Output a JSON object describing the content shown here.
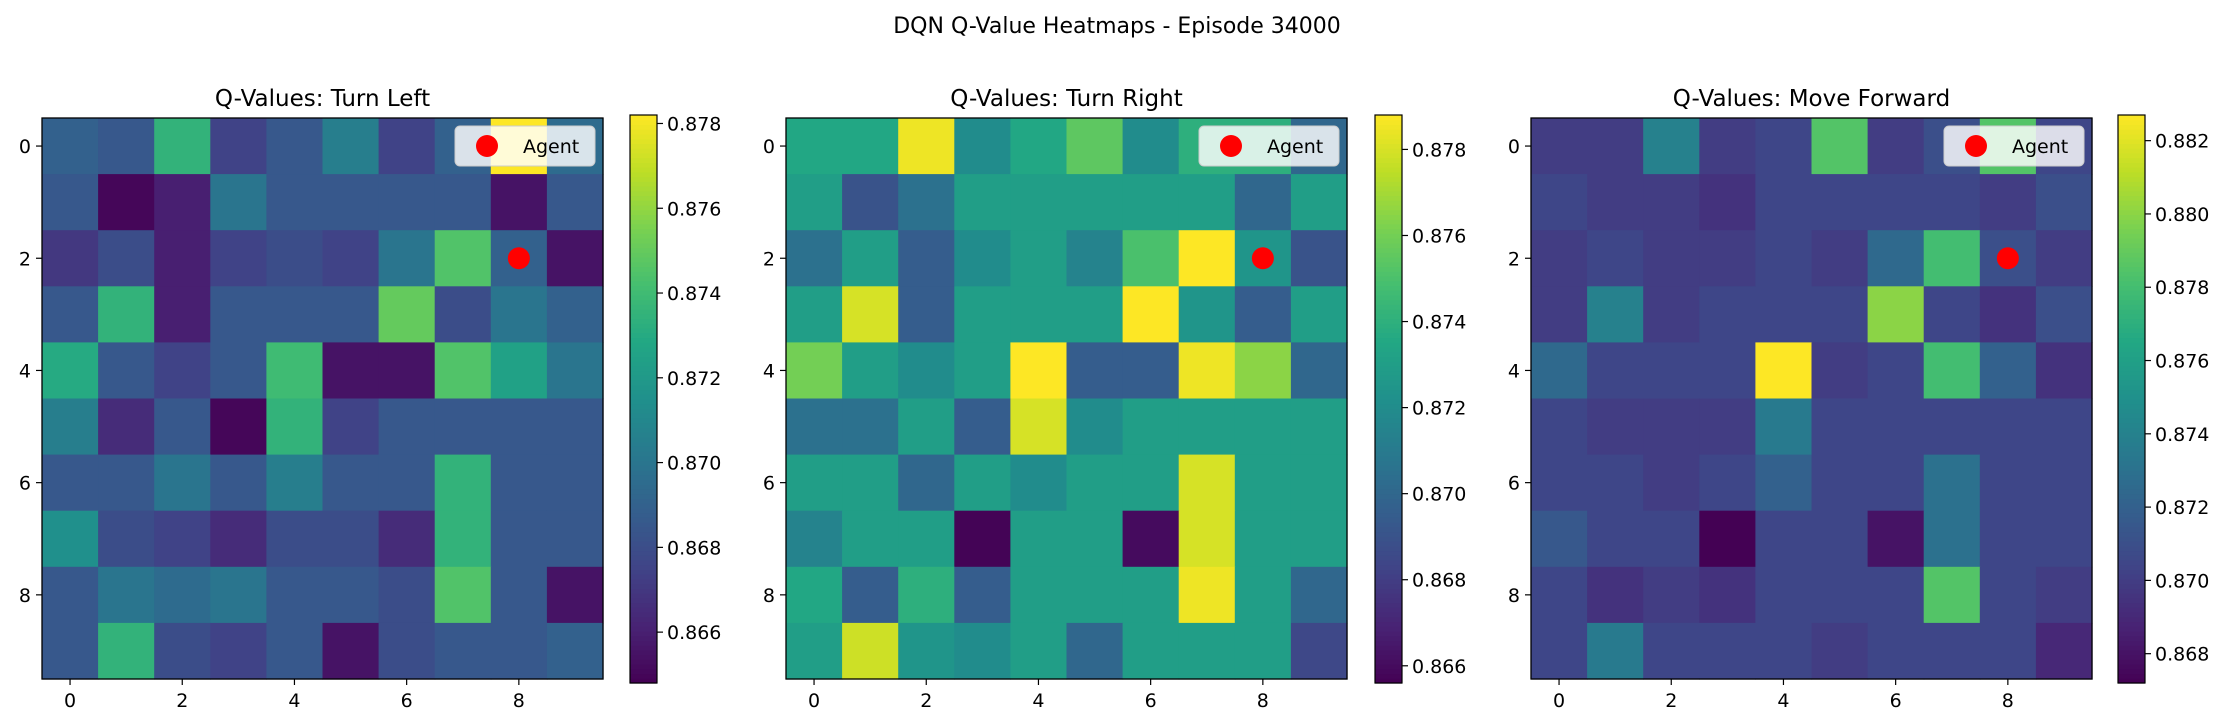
{
  "figure": {
    "suptitle": "DQN Q-Value Heatmaps - Episode 34000"
  },
  "chart_data": [
    {
      "type": "heatmap",
      "title": "Q-Values: Turn Left",
      "xlabel": "",
      "ylabel": "",
      "x_ticks": [
        "0",
        "2",
        "4",
        "6",
        "8"
      ],
      "y_ticks": [
        "0",
        "2",
        "4",
        "6",
        "8"
      ],
      "colorbar": {
        "min": 0.8648,
        "max": 0.8782,
        "ticks": [
          "0.866",
          "0.868",
          "0.870",
          "0.872",
          "0.874",
          "0.876",
          "0.878"
        ],
        "tick_values": [
          0.866,
          0.868,
          0.87,
          0.872,
          0.874,
          0.876,
          0.878
        ]
      },
      "legend": {
        "label": "Agent",
        "position": "top-right"
      },
      "agent": {
        "x": 8,
        "y": 2
      },
      "values": [
        [
          0.869,
          0.8685,
          0.8735,
          0.8675,
          0.8685,
          0.8705,
          0.8675,
          0.869,
          0.8782,
          0.8695
        ],
        [
          0.8685,
          0.865,
          0.866,
          0.87,
          0.8685,
          0.8685,
          0.8685,
          0.8685,
          0.8655,
          0.8685
        ],
        [
          0.867,
          0.868,
          0.866,
          0.8675,
          0.868,
          0.8675,
          0.87,
          0.8745,
          0.869,
          0.8655
        ],
        [
          0.8685,
          0.8735,
          0.866,
          0.8685,
          0.8685,
          0.8685,
          0.875,
          0.868,
          0.87,
          0.869
        ],
        [
          0.873,
          0.8685,
          0.8675,
          0.8685,
          0.874,
          0.8655,
          0.8655,
          0.8745,
          0.8725,
          0.87
        ],
        [
          0.8705,
          0.8665,
          0.8685,
          0.865,
          0.8735,
          0.8675,
          0.8685,
          0.8685,
          0.8685,
          0.8685
        ],
        [
          0.8685,
          0.8685,
          0.87,
          0.8685,
          0.8705,
          0.8685,
          0.8685,
          0.8735,
          0.8685,
          0.8685
        ],
        [
          0.8715,
          0.868,
          0.8675,
          0.8665,
          0.868,
          0.868,
          0.8665,
          0.8735,
          0.8685,
          0.8685
        ],
        [
          0.8685,
          0.87,
          0.8695,
          0.87,
          0.8685,
          0.8685,
          0.868,
          0.8745,
          0.8685,
          0.8655
        ],
        [
          0.8685,
          0.8735,
          0.868,
          0.8675,
          0.8685,
          0.8655,
          0.868,
          0.8685,
          0.8685,
          0.869
        ]
      ]
    },
    {
      "type": "heatmap",
      "title": "Q-Values: Turn Right",
      "xlabel": "",
      "ylabel": "",
      "x_ticks": [
        "0",
        "2",
        "4",
        "6",
        "8"
      ],
      "y_ticks": [
        "0",
        "2",
        "4",
        "6",
        "8"
      ],
      "colorbar": {
        "min": 0.8656,
        "max": 0.8788,
        "ticks": [
          "0.866",
          "0.868",
          "0.870",
          "0.872",
          "0.874",
          "0.876",
          "0.878"
        ],
        "tick_values": [
          0.866,
          0.868,
          0.87,
          0.872,
          0.874,
          0.876,
          0.878
        ]
      },
      "legend": {
        "label": "Agent",
        "position": "top-right"
      },
      "agent": {
        "x": 8,
        "y": 2
      },
      "values": [
        [
          0.8735,
          0.8735,
          0.8785,
          0.872,
          0.8735,
          0.8755,
          0.872,
          0.874,
          0.874,
          0.87
        ],
        [
          0.873,
          0.869,
          0.8705,
          0.873,
          0.873,
          0.873,
          0.873,
          0.873,
          0.87,
          0.873
        ],
        [
          0.8705,
          0.873,
          0.8695,
          0.872,
          0.873,
          0.8715,
          0.875,
          0.8788,
          0.8725,
          0.869
        ],
        [
          0.873,
          0.878,
          0.8695,
          0.873,
          0.873,
          0.873,
          0.8788,
          0.8725,
          0.8695,
          0.873
        ],
        [
          0.876,
          0.873,
          0.872,
          0.873,
          0.8788,
          0.8695,
          0.8695,
          0.8785,
          0.8765,
          0.87
        ],
        [
          0.8705,
          0.8705,
          0.873,
          0.8695,
          0.878,
          0.872,
          0.873,
          0.873,
          0.873,
          0.873
        ],
        [
          0.873,
          0.873,
          0.87,
          0.873,
          0.872,
          0.873,
          0.873,
          0.878,
          0.873,
          0.873
        ],
        [
          0.8715,
          0.873,
          0.873,
          0.8657,
          0.873,
          0.873,
          0.866,
          0.878,
          0.873,
          0.873
        ],
        [
          0.8735,
          0.8695,
          0.874,
          0.8695,
          0.873,
          0.873,
          0.873,
          0.8785,
          0.873,
          0.87
        ],
        [
          0.873,
          0.8778,
          0.8725,
          0.872,
          0.873,
          0.87,
          0.873,
          0.873,
          0.873,
          0.8685
        ]
      ]
    },
    {
      "type": "heatmap",
      "title": "Q-Values: Move Forward",
      "xlabel": "",
      "ylabel": "",
      "x_ticks": [
        "0",
        "2",
        "4",
        "6",
        "8"
      ],
      "y_ticks": [
        "0",
        "2",
        "4",
        "6",
        "8"
      ],
      "colorbar": {
        "min": 0.8672,
        "max": 0.8827,
        "ticks": [
          "0.868",
          "0.870",
          "0.872",
          "0.874",
          "0.876",
          "0.878",
          "0.880",
          "0.882"
        ],
        "tick_values": [
          0.868,
          0.87,
          0.872,
          0.874,
          0.876,
          0.878,
          0.88,
          0.882
        ]
      },
      "legend": {
        "label": "Agent",
        "position": "top-right"
      },
      "agent": {
        "x": 8,
        "y": 2
      },
      "values": [
        [
          0.87,
          0.87,
          0.874,
          0.87,
          0.8705,
          0.8785,
          0.87,
          0.871,
          0.8785,
          0.8705
        ],
        [
          0.8705,
          0.87,
          0.87,
          0.8695,
          0.8705,
          0.8705,
          0.8705,
          0.8705,
          0.87,
          0.871
        ],
        [
          0.87,
          0.8705,
          0.87,
          0.87,
          0.8705,
          0.87,
          0.8725,
          0.878,
          0.871,
          0.87
        ],
        [
          0.87,
          0.874,
          0.87,
          0.8705,
          0.8705,
          0.8705,
          0.88,
          0.8705,
          0.8695,
          0.871
        ],
        [
          0.8725,
          0.8705,
          0.8705,
          0.8705,
          0.8827,
          0.87,
          0.8705,
          0.878,
          0.872,
          0.8695
        ],
        [
          0.8705,
          0.87,
          0.87,
          0.87,
          0.8735,
          0.8705,
          0.8705,
          0.8705,
          0.8705,
          0.8705
        ],
        [
          0.8705,
          0.8705,
          0.87,
          0.8705,
          0.872,
          0.8705,
          0.8705,
          0.873,
          0.8705,
          0.8705
        ],
        [
          0.8715,
          0.8705,
          0.8705,
          0.8672,
          0.8705,
          0.8705,
          0.868,
          0.873,
          0.8705,
          0.8705
        ],
        [
          0.8705,
          0.8695,
          0.87,
          0.8695,
          0.8705,
          0.8705,
          0.8705,
          0.8785,
          0.8705,
          0.87
        ],
        [
          0.8705,
          0.8735,
          0.8705,
          0.8705,
          0.8705,
          0.87,
          0.8705,
          0.8705,
          0.8705,
          0.869
        ]
      ]
    }
  ]
}
